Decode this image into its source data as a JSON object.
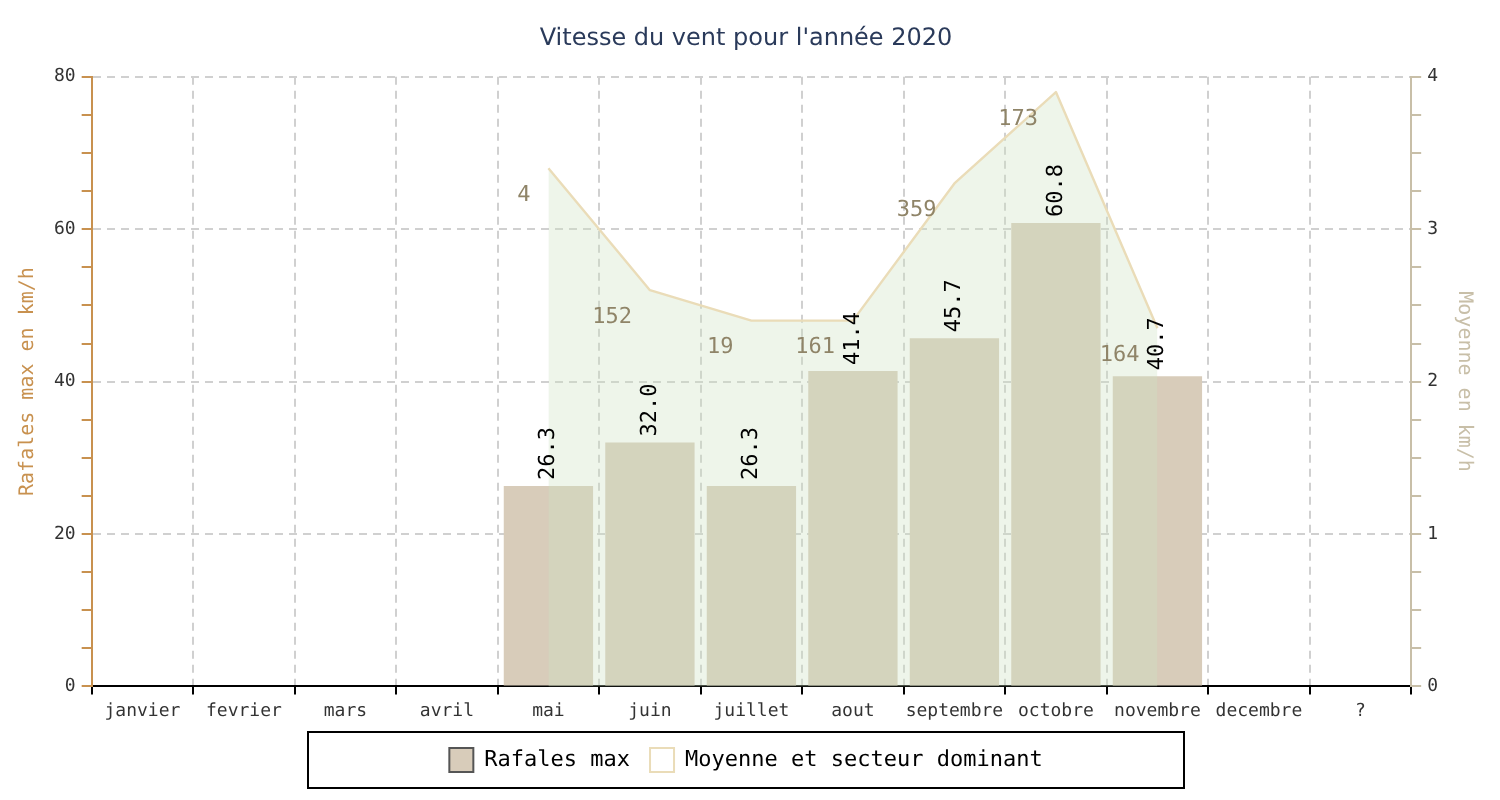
{
  "chart_data": {
    "type": "bar",
    "title": "Vitesse du vent pour l'année 2020",
    "ylabel": "Rafales max en km/h",
    "y2label": "Moyenne en km/h",
    "categories": [
      "janvier",
      "fevrier",
      "mars",
      "avril",
      "mai",
      "juin",
      "juillet",
      "aout",
      "septembre",
      "octobre",
      "novembre",
      "decembre",
      "?"
    ],
    "series": [
      {
        "name": "Rafales max",
        "color": "#d8ccba",
        "values": [
          null,
          null,
          null,
          null,
          26.3,
          32.0,
          26.3,
          41.4,
          45.7,
          60.8,
          40.7,
          null,
          null
        ],
        "value_labels": [
          null,
          null,
          null,
          null,
          "26.3",
          "32.0",
          "26.3",
          "41.4",
          "45.7",
          "60.8",
          "40.7",
          null,
          null
        ]
      },
      {
        "name": "Moyenne et secteur dominant",
        "type": "area",
        "axis": "y2",
        "color": "#eadcb8",
        "values": [
          null,
          null,
          null,
          null,
          3.4,
          2.6,
          2.4,
          2.4,
          3.3,
          3.9,
          2.35,
          null,
          null
        ]
      }
    ],
    "annotations": [
      {
        "text": "4",
        "x": "mai",
        "y": 68
      },
      {
        "text": "152",
        "x": "juin",
        "y": 52
      },
      {
        "text": "19",
        "x": "juillet",
        "y": 48
      },
      {
        "text": "161",
        "x": "aout",
        "y": 48
      },
      {
        "text": "359",
        "x": "septembre",
        "y": 66
      },
      {
        "text": "173",
        "x": "octobre",
        "y": 78
      },
      {
        "text": "164",
        "x": "novembre",
        "y": 47
      }
    ],
    "ylim": [
      0,
      80
    ],
    "yticks": [
      0,
      {
        "value": 5,
        "label": null
      },
      {
        "value": 10,
        "label": null
      },
      {
        "value": 15,
        "label": null
      },
      20,
      {
        "value": 25,
        "label": null
      },
      {
        "value": 30,
        "label": null
      },
      {
        "value": 35,
        "label": null
      },
      40,
      {
        "value": 45,
        "label": null
      },
      {
        "value": 50,
        "label": null
      },
      {
        "value": 55,
        "label": null
      },
      60,
      {
        "value": 65,
        "label": null
      },
      {
        "value": 70,
        "label": null
      },
      {
        "value": 75,
        "label": null
      },
      80
    ],
    "y2lim": [
      0,
      4
    ],
    "y2ticks": [
      0,
      {
        "value": 0.25,
        "label": null
      },
      {
        "value": 0.5,
        "label": null
      },
      {
        "value": 0.75,
        "label": null
      },
      1,
      {
        "value": 1.25,
        "label": null
      },
      {
        "value": 1.5,
        "label": null
      },
      {
        "value": 1.75,
        "label": null
      },
      2,
      {
        "value": 2.25,
        "label": null
      },
      {
        "value": 2.5,
        "label": null
      },
      {
        "value": 2.75,
        "label": null
      },
      3,
      {
        "value": 3.25,
        "label": null
      },
      {
        "value": 3.5,
        "label": null
      },
      {
        "value": 3.75,
        "label": null
      },
      4
    ],
    "grid": true,
    "legend": "bottom",
    "line_style": "solid",
    "marker": "none"
  }
}
